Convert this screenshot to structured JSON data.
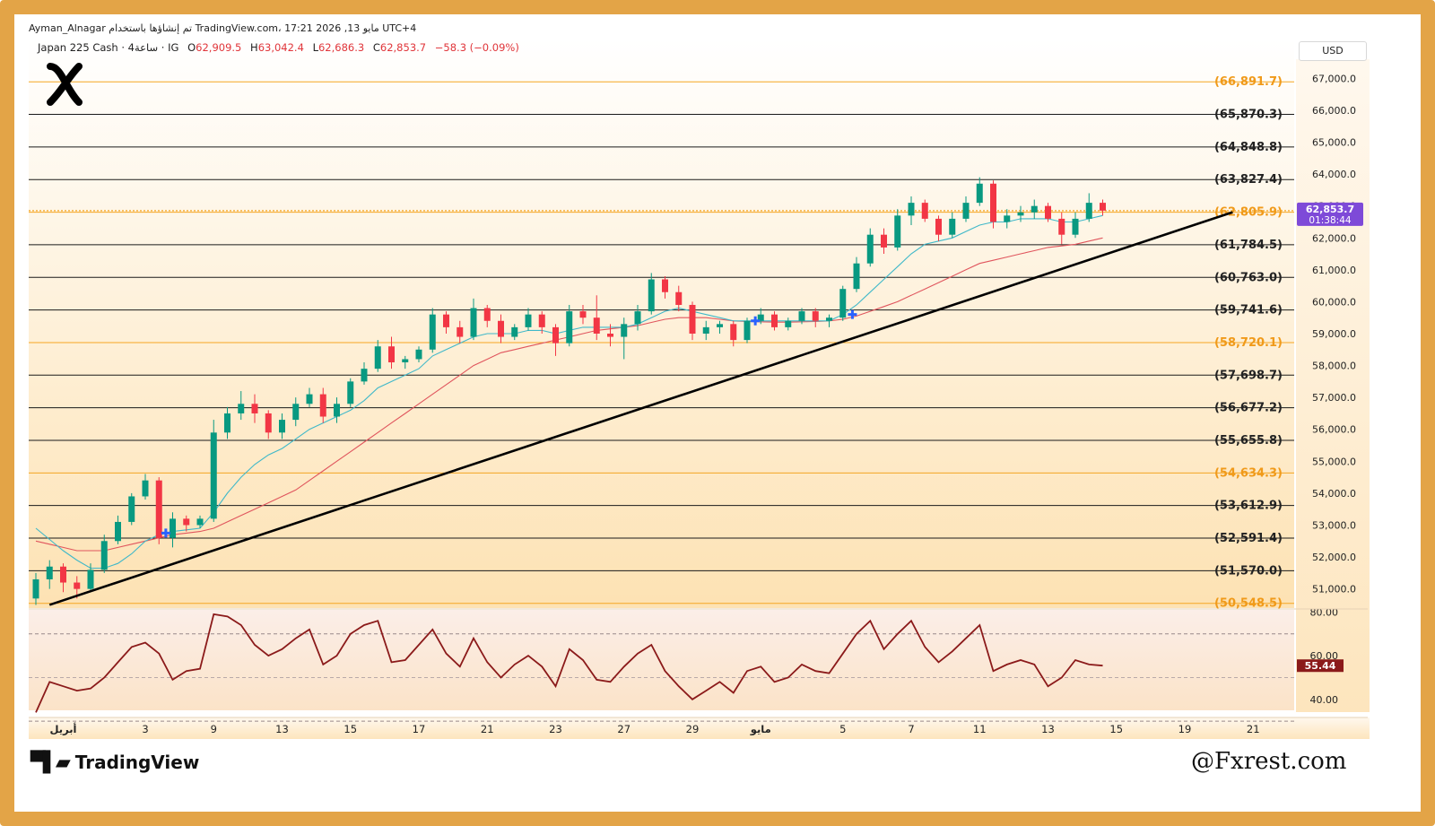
{
  "header": {
    "line1": "Ayman_Alnagar تم إنشاؤها باستخدام TradingView.com، 17:21 2026 ,13 مايو UTC+4",
    "symbol": "Japan 225 Cash · 4ساعة · IG",
    "open_label": "O",
    "open": "62,909.5",
    "high_label": "H",
    "high": "63,042.4",
    "low_label": "L",
    "low": "62,686.3",
    "close_label": "C",
    "close": "62,853.7",
    "change": "−58.3 (−0.09%)"
  },
  "currency": "USD",
  "price_tag": {
    "price": "62,853.7",
    "countdown": "01:38:44",
    "value": 62853.7
  },
  "rsi_tag": {
    "label": "55.44",
    "value": 55.44
  },
  "branding": {
    "tv_logo_text": "TradingView",
    "watermark": "@Fxrest.com"
  },
  "colors": {
    "frame": "#e3a447",
    "bull": "#089981",
    "bear": "#f23645",
    "ema_fast": "#3fb8c9",
    "ema_slow": "#e0555d",
    "trendline": "#000000",
    "rsi": "#8b1a1a",
    "price_tag": "#7e4ad8",
    "orange_level": "#f5a623"
  },
  "icons": [
    "x-logo-icon",
    "tradingview-logo-icon",
    "blue-cross-marker-icon"
  ],
  "chart_data": {
    "type": "candlestick",
    "y_axis": {
      "ticks": [
        "67,000.0",
        "66,000.0",
        "65,000.0",
        "64,000.0",
        "63,000.0",
        "62,000.0",
        "61,000.0",
        "60,000.0",
        "59,000.0",
        "58,000.0",
        "57,000.0",
        "56,000.0",
        "55,000.0",
        "54,000.0",
        "53,000.0",
        "52,000.0",
        "51,000.0"
      ],
      "range": [
        50400,
        67600
      ]
    },
    "x_axis": {
      "ticks": [
        {
          "label": "أبريل",
          "i": 2
        },
        {
          "label": "3",
          "i": 8
        },
        {
          "label": "9",
          "i": 13
        },
        {
          "label": "13",
          "i": 18
        },
        {
          "label": "15",
          "i": 23
        },
        {
          "label": "17",
          "i": 28
        },
        {
          "label": "21",
          "i": 33
        },
        {
          "label": "23",
          "i": 38
        },
        {
          "label": "27",
          "i": 43
        },
        {
          "label": "29",
          "i": 48
        },
        {
          "label": "مايو",
          "i": 53
        },
        {
          "label": "5",
          "i": 59
        },
        {
          "label": "7",
          "i": 64
        },
        {
          "label": "11",
          "i": 69
        },
        {
          "label": "13",
          "i": 74
        },
        {
          "label": "15",
          "i": 79
        },
        {
          "label": "19",
          "i": 84
        },
        {
          "label": "21",
          "i": 89
        }
      ]
    },
    "levels": [
      {
        "label": "(66,891.7)",
        "value": 66891.7,
        "color": "orange"
      },
      {
        "label": "(65,870.3)",
        "value": 65870.3,
        "color": "black"
      },
      {
        "label": "(64,848.8)",
        "value": 64848.8,
        "color": "black"
      },
      {
        "label": "(63,827.4)",
        "value": 63827.4,
        "color": "black"
      },
      {
        "label": "(62,805.9)",
        "value": 62805.9,
        "color": "orange"
      },
      {
        "label": "(61,784.5)",
        "value": 61784.5,
        "color": "black"
      },
      {
        "label": "(60,763.0)",
        "value": 60763.0,
        "color": "black"
      },
      {
        "label": "(59,741.6)",
        "value": 59741.6,
        "color": "black"
      },
      {
        "label": "(58,720.1)",
        "value": 58720.1,
        "color": "orange"
      },
      {
        "label": "(57,698.7)",
        "value": 57698.7,
        "color": "black"
      },
      {
        "label": "(56,677.2)",
        "value": 56677.2,
        "color": "black"
      },
      {
        "label": "(55,655.8)",
        "value": 55655.8,
        "color": "black"
      },
      {
        "label": "(54,634.3)",
        "value": 54634.3,
        "color": "orange"
      },
      {
        "label": "(53,612.9)",
        "value": 53612.9,
        "color": "black"
      },
      {
        "label": "(52,591.4)",
        "value": 52591.4,
        "color": "black"
      },
      {
        "label": "(51,570.0)",
        "value": 51570.0,
        "color": "black"
      },
      {
        "label": "(50,548.5)",
        "value": 50548.5,
        "color": "orange"
      }
    ],
    "candles": [
      {
        "o": 50700,
        "h": 51500,
        "l": 50500,
        "c": 51300
      },
      {
        "o": 51300,
        "h": 51900,
        "l": 51000,
        "c": 51700
      },
      {
        "o": 51700,
        "h": 51800,
        "l": 50900,
        "c": 51200
      },
      {
        "o": 51200,
        "h": 51400,
        "l": 50700,
        "c": 51000
      },
      {
        "o": 51000,
        "h": 51800,
        "l": 50900,
        "c": 51600
      },
      {
        "o": 51600,
        "h": 52700,
        "l": 51500,
        "c": 52500
      },
      {
        "o": 52500,
        "h": 53300,
        "l": 52400,
        "c": 53100
      },
      {
        "o": 53100,
        "h": 54000,
        "l": 53000,
        "c": 53900
      },
      {
        "o": 53900,
        "h": 54600,
        "l": 53800,
        "c": 54400
      },
      {
        "o": 54400,
        "h": 54500,
        "l": 52400,
        "c": 52600
      },
      {
        "o": 52600,
        "h": 53400,
        "l": 52300,
        "c": 53200
      },
      {
        "o": 53200,
        "h": 53300,
        "l": 52800,
        "c": 53000
      },
      {
        "o": 53000,
        "h": 53300,
        "l": 52900,
        "c": 53200
      },
      {
        "o": 53200,
        "h": 56300,
        "l": 53100,
        "c": 55900
      },
      {
        "o": 55900,
        "h": 56700,
        "l": 55700,
        "c": 56500
      },
      {
        "o": 56500,
        "h": 57200,
        "l": 56300,
        "c": 56800
      },
      {
        "o": 56800,
        "h": 57100,
        "l": 56200,
        "c": 56500
      },
      {
        "o": 56500,
        "h": 56600,
        "l": 55700,
        "c": 55900
      },
      {
        "o": 55900,
        "h": 56500,
        "l": 55700,
        "c": 56300
      },
      {
        "o": 56300,
        "h": 57000,
        "l": 56100,
        "c": 56800
      },
      {
        "o": 56800,
        "h": 57300,
        "l": 56700,
        "c": 57100
      },
      {
        "o": 57100,
        "h": 57300,
        "l": 56200,
        "c": 56400
      },
      {
        "o": 56400,
        "h": 57000,
        "l": 56200,
        "c": 56800
      },
      {
        "o": 56800,
        "h": 57600,
        "l": 56700,
        "c": 57500
      },
      {
        "o": 57500,
        "h": 58100,
        "l": 57400,
        "c": 57900
      },
      {
        "o": 57900,
        "h": 58800,
        "l": 57800,
        "c": 58600
      },
      {
        "o": 58600,
        "h": 58900,
        "l": 57900,
        "c": 58100
      },
      {
        "o": 58100,
        "h": 58300,
        "l": 57900,
        "c": 58200
      },
      {
        "o": 58200,
        "h": 58600,
        "l": 58100,
        "c": 58500
      },
      {
        "o": 58500,
        "h": 59800,
        "l": 58400,
        "c": 59600
      },
      {
        "o": 59600,
        "h": 59700,
        "l": 59000,
        "c": 59200
      },
      {
        "o": 59200,
        "h": 59400,
        "l": 58700,
        "c": 58900
      },
      {
        "o": 58900,
        "h": 60100,
        "l": 58800,
        "c": 59800
      },
      {
        "o": 59800,
        "h": 59900,
        "l": 59200,
        "c": 59400
      },
      {
        "o": 59400,
        "h": 59600,
        "l": 58700,
        "c": 58900
      },
      {
        "o": 58900,
        "h": 59300,
        "l": 58800,
        "c": 59200
      },
      {
        "o": 59200,
        "h": 59800,
        "l": 59100,
        "c": 59600
      },
      {
        "o": 59600,
        "h": 59700,
        "l": 59000,
        "c": 59200
      },
      {
        "o": 59200,
        "h": 59300,
        "l": 58300,
        "c": 58700
      },
      {
        "o": 58700,
        "h": 59900,
        "l": 58600,
        "c": 59700
      },
      {
        "o": 59700,
        "h": 59900,
        "l": 59300,
        "c": 59500
      },
      {
        "o": 59500,
        "h": 60200,
        "l": 58800,
        "c": 59000
      },
      {
        "o": 59000,
        "h": 59300,
        "l": 58600,
        "c": 58900
      },
      {
        "o": 58900,
        "h": 59500,
        "l": 58200,
        "c": 59300
      },
      {
        "o": 59300,
        "h": 59900,
        "l": 59100,
        "c": 59700
      },
      {
        "o": 59700,
        "h": 60900,
        "l": 59600,
        "c": 60700
      },
      {
        "o": 60700,
        "h": 60800,
        "l": 60100,
        "c": 60300
      },
      {
        "o": 60300,
        "h": 60500,
        "l": 59700,
        "c": 59900
      },
      {
        "o": 59900,
        "h": 60000,
        "l": 58800,
        "c": 59000
      },
      {
        "o": 59000,
        "h": 59400,
        "l": 58800,
        "c": 59200
      },
      {
        "o": 59200,
        "h": 59400,
        "l": 59000,
        "c": 59300
      },
      {
        "o": 59300,
        "h": 59400,
        "l": 58600,
        "c": 58800
      },
      {
        "o": 58800,
        "h": 59500,
        "l": 58700,
        "c": 59400
      },
      {
        "o": 59400,
        "h": 59800,
        "l": 59300,
        "c": 59600
      },
      {
        "o": 59600,
        "h": 59700,
        "l": 59100,
        "c": 59200
      },
      {
        "o": 59200,
        "h": 59500,
        "l": 59100,
        "c": 59400
      },
      {
        "o": 59400,
        "h": 59800,
        "l": 59300,
        "c": 59700
      },
      {
        "o": 59700,
        "h": 59800,
        "l": 59200,
        "c": 59400
      },
      {
        "o": 59400,
        "h": 59600,
        "l": 59200,
        "c": 59500
      },
      {
        "o": 59500,
        "h": 60500,
        "l": 59400,
        "c": 60400
      },
      {
        "o": 60400,
        "h": 61400,
        "l": 60300,
        "c": 61200
      },
      {
        "o": 61200,
        "h": 62300,
        "l": 61100,
        "c": 62100
      },
      {
        "o": 62100,
        "h": 62300,
        "l": 61500,
        "c": 61700
      },
      {
        "o": 61700,
        "h": 62900,
        "l": 61600,
        "c": 62700
      },
      {
        "o": 62700,
        "h": 63300,
        "l": 62400,
        "c": 63100
      },
      {
        "o": 63100,
        "h": 63200,
        "l": 62500,
        "c": 62600
      },
      {
        "o": 62600,
        "h": 62700,
        "l": 61900,
        "c": 62100
      },
      {
        "o": 62100,
        "h": 62800,
        "l": 62000,
        "c": 62600
      },
      {
        "o": 62600,
        "h": 63300,
        "l": 62500,
        "c": 63100
      },
      {
        "o": 63100,
        "h": 63900,
        "l": 63000,
        "c": 63700
      },
      {
        "o": 63700,
        "h": 63800,
        "l": 62300,
        "c": 62500
      },
      {
        "o": 62500,
        "h": 62900,
        "l": 62300,
        "c": 62700
      },
      {
        "o": 62700,
        "h": 63000,
        "l": 62500,
        "c": 62800
      },
      {
        "o": 62800,
        "h": 63200,
        "l": 62600,
        "c": 63000
      },
      {
        "o": 63000,
        "h": 63100,
        "l": 62500,
        "c": 62600
      },
      {
        "o": 62600,
        "h": 62800,
        "l": 61800,
        "c": 62100
      },
      {
        "o": 62100,
        "h": 62800,
        "l": 62000,
        "c": 62600
      },
      {
        "o": 62600,
        "h": 63400,
        "l": 62500,
        "c": 63100
      },
      {
        "o": 63100,
        "h": 63200,
        "l": 62700,
        "c": 62853.7
      }
    ],
    "ema_fast": [
      52900,
      52550,
      52200,
      51900,
      51650,
      51650,
      51800,
      52100,
      52500,
      52700,
      52800,
      52850,
      52900,
      53400,
      54000,
      54500,
      54900,
      55200,
      55400,
      55700,
      56000,
      56200,
      56400,
      56600,
      56900,
      57300,
      57500,
      57700,
      57900,
      58300,
      58500,
      58700,
      58900,
      59000,
      59000,
      59000,
      59100,
      59100,
      59000,
      59100,
      59200,
      59200,
      59200,
      59200,
      59300,
      59500,
      59700,
      59800,
      59700,
      59600,
      59500,
      59400,
      59400,
      59400,
      59400,
      59400,
      59400,
      59400,
      59400,
      59600,
      59900,
      60300,
      60700,
      61100,
      61500,
      61800,
      61900,
      62000,
      62200,
      62400,
      62500,
      62500,
      62600,
      62600,
      62600,
      62500,
      62500,
      62600,
      62700
    ],
    "ema_slow": [
      52500,
      52400,
      52300,
      52200,
      52200,
      52200,
      52300,
      52400,
      52500,
      52600,
      52700,
      52750,
      52800,
      52900,
      53100,
      53300,
      53500,
      53700,
      53900,
      54100,
      54400,
      54700,
      55000,
      55300,
      55600,
      55900,
      56200,
      56500,
      56800,
      57100,
      57400,
      57700,
      58000,
      58200,
      58400,
      58500,
      58600,
      58700,
      58800,
      58900,
      59000,
      59100,
      59150,
      59200,
      59250,
      59350,
      59450,
      59500,
      59500,
      59500,
      59450,
      59400,
      59380,
      59370,
      59360,
      59360,
      59370,
      59380,
      59400,
      59450,
      59550,
      59700,
      59850,
      60000,
      60200,
      60400,
      60600,
      60800,
      61000,
      61200,
      61300,
      61400,
      61500,
      61600,
      61700,
      61750,
      61800,
      61900,
      62000
    ],
    "trendline": {
      "i1": 1,
      "v1": 50500,
      "i2": 87.5,
      "v2": 62805.9
    },
    "markers": [
      {
        "i": 9.5,
        "v": 52750
      },
      {
        "i": 52.6,
        "v": 59400
      },
      {
        "i": 59.7,
        "v": 59600
      }
    ],
    "rsi": {
      "ticks": [
        "80.00",
        "60.00",
        "40.00"
      ],
      "range": [
        35,
        81
      ],
      "band": [
        30,
        70
      ],
      "midline": 50,
      "values": [
        34,
        48,
        46,
        44,
        45,
        50,
        57,
        64,
        66,
        61,
        49,
        53,
        54,
        79,
        78,
        74,
        65,
        60,
        63,
        68,
        72,
        56,
        60,
        70,
        74,
        76,
        57,
        58,
        65,
        72,
        61,
        55,
        68,
        57,
        50,
        56,
        60,
        55,
        46,
        63,
        58,
        49,
        48,
        55,
        61,
        65,
        53,
        46,
        40,
        44,
        48,
        43,
        53,
        55,
        48,
        50,
        56,
        53,
        52,
        61,
        70,
        76,
        63,
        70,
        76,
        64,
        57,
        62,
        68,
        74,
        53,
        56,
        58,
        56,
        46,
        50,
        58,
        56,
        55.44
      ]
    }
  }
}
